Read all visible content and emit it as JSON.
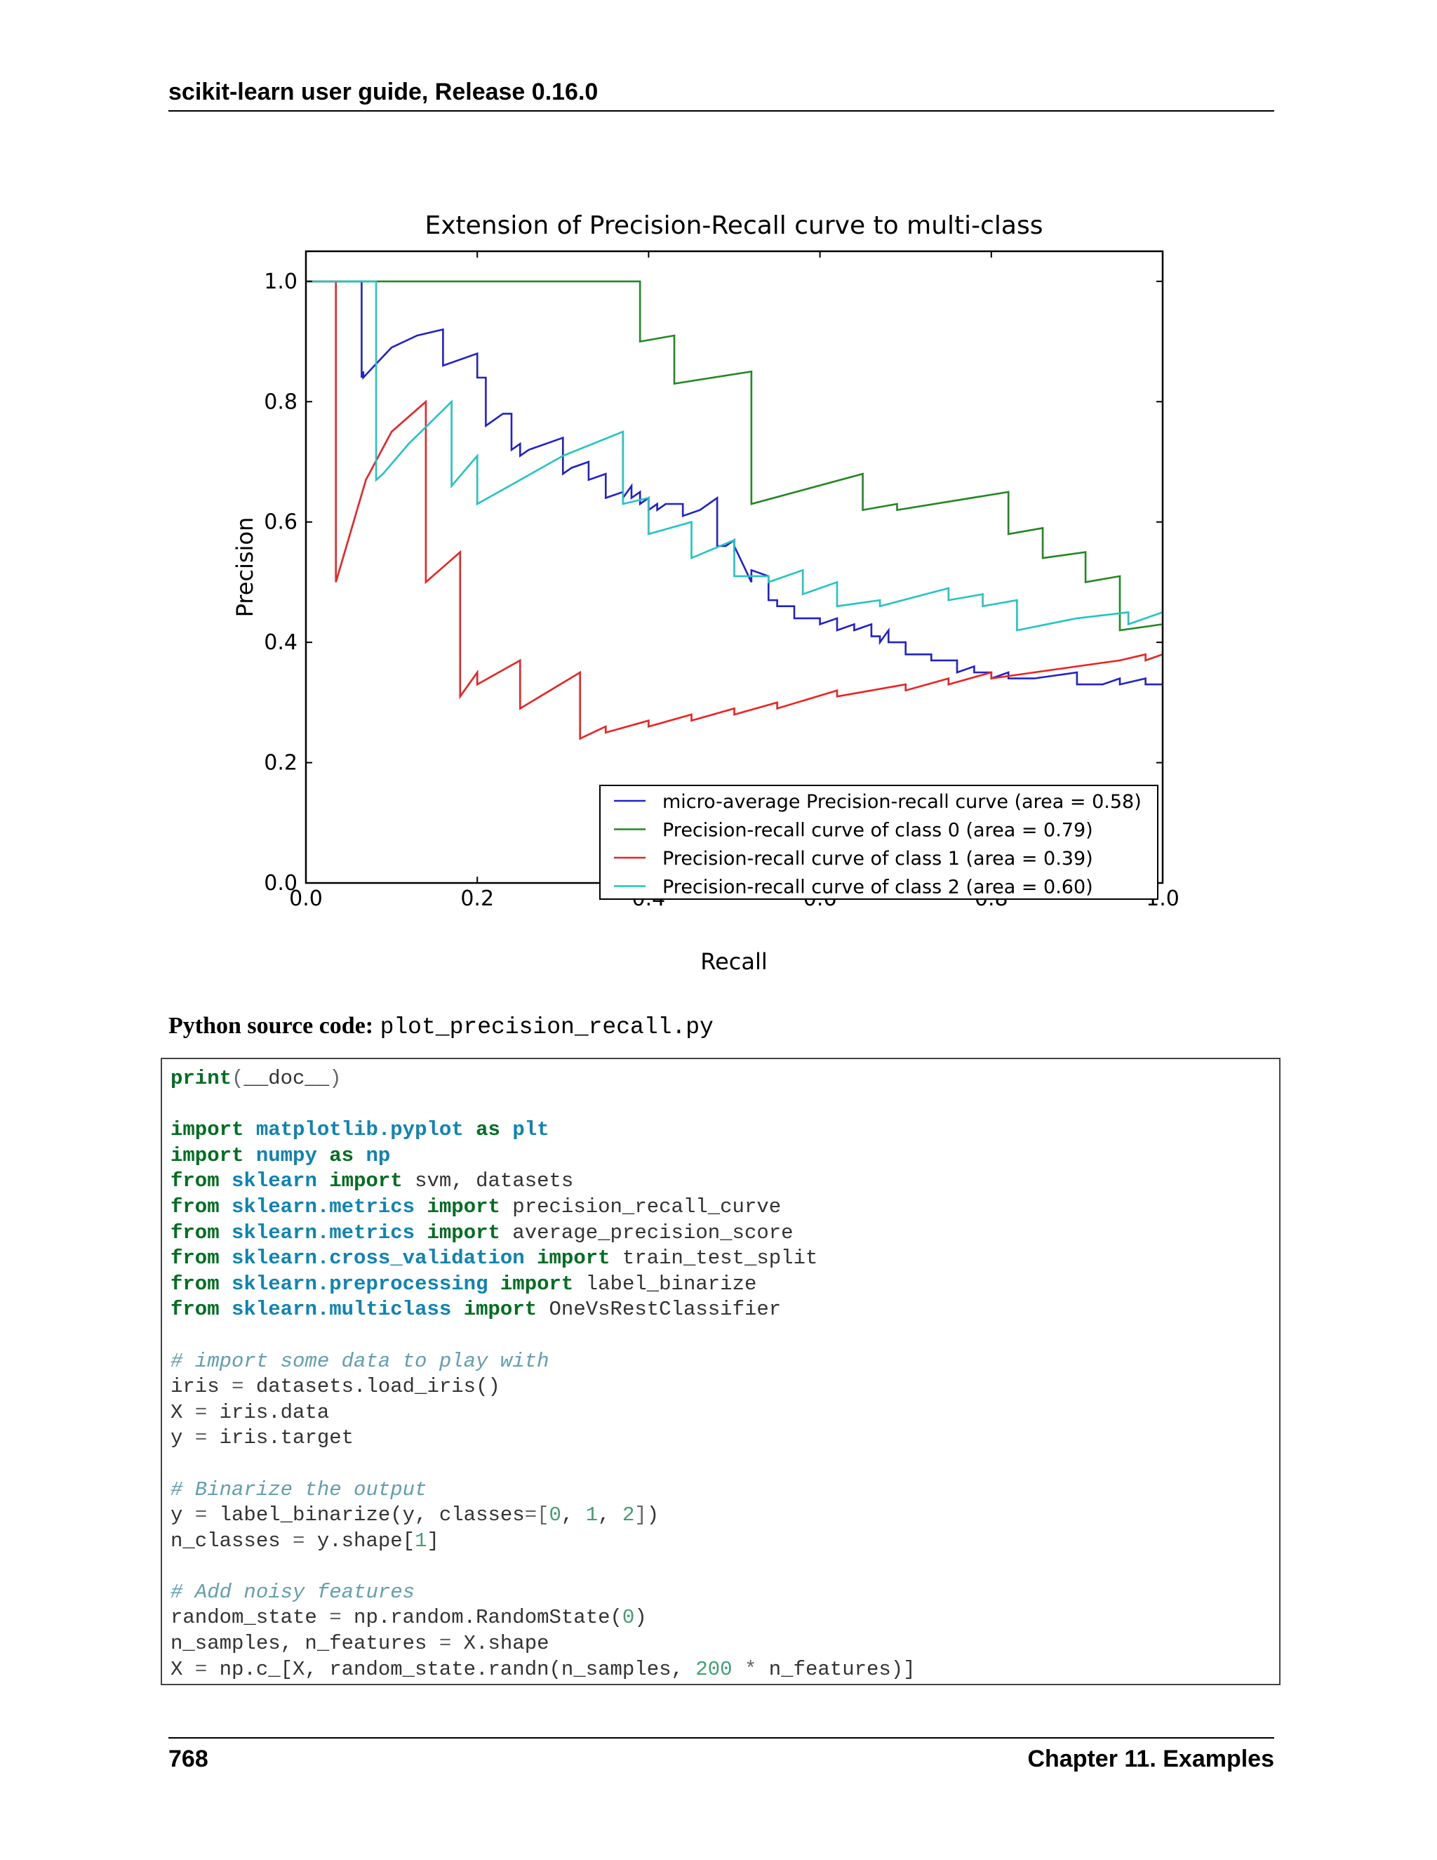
{
  "header": {
    "running_title": "scikit-learn user guide, Release 0.16.0"
  },
  "chart_data": {
    "type": "line",
    "title": "Extension of Precision-Recall curve to multi-class",
    "xlabel": "Recall",
    "ylabel": "Precision",
    "xlim": [
      0.0,
      1.0
    ],
    "ylim": [
      0.0,
      1.05
    ],
    "xticks": [
      0.0,
      0.2,
      0.4,
      0.6,
      0.8,
      1.0
    ],
    "xtick_labels": [
      "0.0",
      "0.2",
      "0.4",
      "0.6",
      "0.8",
      "1.0"
    ],
    "yticks": [
      0.0,
      0.2,
      0.4,
      0.6,
      0.8,
      1.0
    ],
    "ytick_labels": [
      "0.0",
      "0.2",
      "0.4",
      "0.6",
      "0.8",
      "1.0"
    ],
    "grid": false,
    "legend_position": "lower-right",
    "series": [
      {
        "name": "micro-average Precision-recall curve (area = 0.58)",
        "color": "#2222cc",
        "x": [
          0.0,
          0.065,
          0.065,
          0.067,
          0.067,
          0.08,
          0.1,
          0.13,
          0.16,
          0.16,
          0.2,
          0.2,
          0.21,
          0.21,
          0.23,
          0.24,
          0.24,
          0.25,
          0.25,
          0.26,
          0.3,
          0.3,
          0.31,
          0.33,
          0.33,
          0.35,
          0.35,
          0.37,
          0.37,
          0.38,
          0.38,
          0.39,
          0.39,
          0.4,
          0.4,
          0.41,
          0.41,
          0.42,
          0.44,
          0.44,
          0.46,
          0.48,
          0.48,
          0.49,
          0.5,
          0.5,
          0.5,
          0.52,
          0.52,
          0.54,
          0.54,
          0.55,
          0.55,
          0.57,
          0.57,
          0.6,
          0.6,
          0.62,
          0.62,
          0.64,
          0.64,
          0.66,
          0.66,
          0.67,
          0.67,
          0.68,
          0.68,
          0.7,
          0.7,
          0.73,
          0.73,
          0.76,
          0.76,
          0.78,
          0.78,
          0.8,
          0.8,
          0.82,
          0.82,
          0.85,
          0.85,
          0.9,
          0.9,
          0.93,
          0.93,
          0.95,
          0.95,
          0.98,
          0.98,
          1.0
        ],
        "y": [
          1.0,
          1.0,
          0.84,
          0.85,
          0.84,
          0.86,
          0.89,
          0.91,
          0.92,
          0.86,
          0.88,
          0.84,
          0.84,
          0.76,
          0.78,
          0.78,
          0.72,
          0.73,
          0.71,
          0.72,
          0.74,
          0.68,
          0.69,
          0.7,
          0.67,
          0.68,
          0.64,
          0.65,
          0.64,
          0.66,
          0.64,
          0.65,
          0.63,
          0.64,
          0.62,
          0.63,
          0.62,
          0.63,
          0.63,
          0.61,
          0.62,
          0.64,
          0.56,
          0.56,
          0.57,
          0.55,
          0.56,
          0.5,
          0.52,
          0.51,
          0.47,
          0.47,
          0.46,
          0.46,
          0.44,
          0.44,
          0.43,
          0.44,
          0.42,
          0.43,
          0.42,
          0.43,
          0.41,
          0.41,
          0.4,
          0.42,
          0.4,
          0.4,
          0.38,
          0.38,
          0.37,
          0.37,
          0.35,
          0.36,
          0.35,
          0.35,
          0.34,
          0.35,
          0.34,
          0.34,
          0.34,
          0.35,
          0.33,
          0.33,
          0.33,
          0.34,
          0.33,
          0.34,
          0.33,
          0.33
        ]
      },
      {
        "name": "Precision-recall curve of class 0 (area = 0.79)",
        "color": "#228822",
        "x": [
          0.0,
          0.39,
          0.39,
          0.43,
          0.43,
          0.52,
          0.52,
          0.65,
          0.65,
          0.69,
          0.69,
          0.82,
          0.82,
          0.86,
          0.86,
          0.91,
          0.91,
          0.95,
          0.95,
          1.0
        ],
        "y": [
          1.0,
          1.0,
          0.9,
          0.91,
          0.83,
          0.85,
          0.63,
          0.68,
          0.62,
          0.63,
          0.62,
          0.65,
          0.58,
          0.59,
          0.54,
          0.55,
          0.5,
          0.51,
          0.42,
          0.43
        ]
      },
      {
        "name": "Precision-recall curve of class 1 (area = 0.39)",
        "color": "#ee2222",
        "x": [
          0.0,
          0.035,
          0.035,
          0.035,
          0.07,
          0.1,
          0.14,
          0.14,
          0.18,
          0.18,
          0.2,
          0.2,
          0.25,
          0.25,
          0.32,
          0.32,
          0.35,
          0.35,
          0.4,
          0.4,
          0.45,
          0.45,
          0.5,
          0.5,
          0.55,
          0.55,
          0.62,
          0.62,
          0.7,
          0.7,
          0.75,
          0.75,
          0.8,
          0.8,
          0.85,
          0.85,
          0.9,
          0.9,
          0.95,
          0.95,
          0.98,
          0.98,
          1.0
        ],
        "y": [
          1.0,
          1.0,
          0.5,
          0.5,
          0.67,
          0.75,
          0.8,
          0.5,
          0.55,
          0.31,
          0.35,
          0.33,
          0.37,
          0.29,
          0.35,
          0.24,
          0.26,
          0.25,
          0.27,
          0.26,
          0.28,
          0.27,
          0.29,
          0.28,
          0.3,
          0.29,
          0.32,
          0.31,
          0.33,
          0.32,
          0.34,
          0.33,
          0.35,
          0.34,
          0.35,
          0.35,
          0.36,
          0.36,
          0.37,
          0.37,
          0.38,
          0.37,
          0.38
        ]
      },
      {
        "name": "Precision-recall curve of class 2 (area = 0.60)",
        "color": "#22c4c4",
        "x": [
          0.0,
          0.082,
          0.082,
          0.09,
          0.12,
          0.17,
          0.17,
          0.2,
          0.2,
          0.25,
          0.3,
          0.37,
          0.37,
          0.4,
          0.4,
          0.45,
          0.45,
          0.5,
          0.5,
          0.54,
          0.54,
          0.58,
          0.58,
          0.62,
          0.62,
          0.67,
          0.67,
          0.75,
          0.75,
          0.79,
          0.79,
          0.83,
          0.83,
          0.9,
          0.9,
          0.96,
          0.96,
          1.0
        ],
        "y": [
          1.0,
          1.0,
          0.67,
          0.68,
          0.73,
          0.8,
          0.66,
          0.71,
          0.63,
          0.67,
          0.71,
          0.75,
          0.63,
          0.64,
          0.58,
          0.6,
          0.54,
          0.57,
          0.51,
          0.51,
          0.5,
          0.52,
          0.48,
          0.5,
          0.46,
          0.47,
          0.46,
          0.49,
          0.47,
          0.48,
          0.46,
          0.47,
          0.42,
          0.44,
          0.44,
          0.45,
          0.43,
          0.45
        ]
      }
    ]
  },
  "source": {
    "label": "Python source code:",
    "filename": "plot_precision_recall.py"
  },
  "code_lines": [
    [
      [
        "kw",
        "print"
      ],
      [
        "op",
        "("
      ],
      [
        "",
        "__doc__"
      ],
      [
        "op",
        ")"
      ]
    ],
    [],
    [
      [
        "kw",
        "import"
      ],
      [
        "",
        " "
      ],
      [
        "mod",
        "matplotlib.pyplot"
      ],
      [
        "",
        " "
      ],
      [
        "kw",
        "as"
      ],
      [
        "",
        " "
      ],
      [
        "mod",
        "plt"
      ]
    ],
    [
      [
        "kw",
        "import"
      ],
      [
        "",
        " "
      ],
      [
        "mod",
        "numpy"
      ],
      [
        "",
        " "
      ],
      [
        "kw",
        "as"
      ],
      [
        "",
        " "
      ],
      [
        "mod",
        "np"
      ]
    ],
    [
      [
        "kw",
        "from"
      ],
      [
        "",
        " "
      ],
      [
        "mod",
        "sklearn"
      ],
      [
        "",
        " "
      ],
      [
        "kw",
        "import"
      ],
      [
        "",
        " svm, datasets"
      ]
    ],
    [
      [
        "kw",
        "from"
      ],
      [
        "",
        " "
      ],
      [
        "mod",
        "sklearn.metrics"
      ],
      [
        "",
        " "
      ],
      [
        "kw",
        "import"
      ],
      [
        "",
        " precision_recall_curve"
      ]
    ],
    [
      [
        "kw",
        "from"
      ],
      [
        "",
        " "
      ],
      [
        "mod",
        "sklearn.metrics"
      ],
      [
        "",
        " "
      ],
      [
        "kw",
        "import"
      ],
      [
        "",
        " average_precision_score"
      ]
    ],
    [
      [
        "kw",
        "from"
      ],
      [
        "",
        " "
      ],
      [
        "mod",
        "sklearn.cross_validation"
      ],
      [
        "",
        " "
      ],
      [
        "kw",
        "import"
      ],
      [
        "",
        " train_test_split"
      ]
    ],
    [
      [
        "kw",
        "from"
      ],
      [
        "",
        " "
      ],
      [
        "mod",
        "sklearn.preprocessing"
      ],
      [
        "",
        " "
      ],
      [
        "kw",
        "import"
      ],
      [
        "",
        " label_binarize"
      ]
    ],
    [
      [
        "kw",
        "from"
      ],
      [
        "",
        " "
      ],
      [
        "mod",
        "sklearn.multiclass"
      ],
      [
        "",
        " "
      ],
      [
        "kw",
        "import"
      ],
      [
        "",
        " OneVsRestClassifier"
      ]
    ],
    [],
    [
      [
        "cm",
        "# import some data to play with"
      ]
    ],
    [
      [
        "",
        "iris "
      ],
      [
        "op",
        "="
      ],
      [
        "",
        " datasets.load_iris()"
      ]
    ],
    [
      [
        "",
        "X "
      ],
      [
        "op",
        "="
      ],
      [
        "",
        " iris.data"
      ]
    ],
    [
      [
        "",
        "y "
      ],
      [
        "op",
        "="
      ],
      [
        "",
        " iris.target"
      ]
    ],
    [],
    [
      [
        "cm",
        "# Binarize the output"
      ]
    ],
    [
      [
        "",
        "y "
      ],
      [
        "op",
        "="
      ],
      [
        "",
        " label_binarize(y, classes"
      ],
      [
        "op",
        "=["
      ],
      [
        "nm",
        "0"
      ],
      [
        "",
        ", "
      ],
      [
        "nm",
        "1"
      ],
      [
        "",
        ", "
      ],
      [
        "nm",
        "2"
      ],
      [
        "op",
        "]"
      ],
      [
        "",
        ")"
      ]
    ],
    [
      [
        "",
        "n_classes "
      ],
      [
        "op",
        "="
      ],
      [
        "",
        " y.shape["
      ],
      [
        "nm",
        "1"
      ],
      [
        "",
        "]"
      ]
    ],
    [],
    [
      [
        "cm",
        "# Add noisy features"
      ]
    ],
    [
      [
        "",
        "random_state "
      ],
      [
        "op",
        "="
      ],
      [
        "",
        " np.random.RandomState("
      ],
      [
        "nm",
        "0"
      ],
      [
        "",
        ")"
      ]
    ],
    [
      [
        "",
        "n_samples, n_features "
      ],
      [
        "op",
        "="
      ],
      [
        "",
        " X.shape"
      ]
    ],
    [
      [
        "",
        "X "
      ],
      [
        "op",
        "="
      ],
      [
        "",
        " np.c_[X, random_state.randn(n_samples, "
      ],
      [
        "nm",
        "200"
      ],
      [
        "",
        " "
      ],
      [
        "op",
        "*"
      ],
      [
        "",
        " n_features)]"
      ]
    ]
  ],
  "footer": {
    "page_number": "768",
    "chapter": "Chapter 11.  Examples"
  }
}
